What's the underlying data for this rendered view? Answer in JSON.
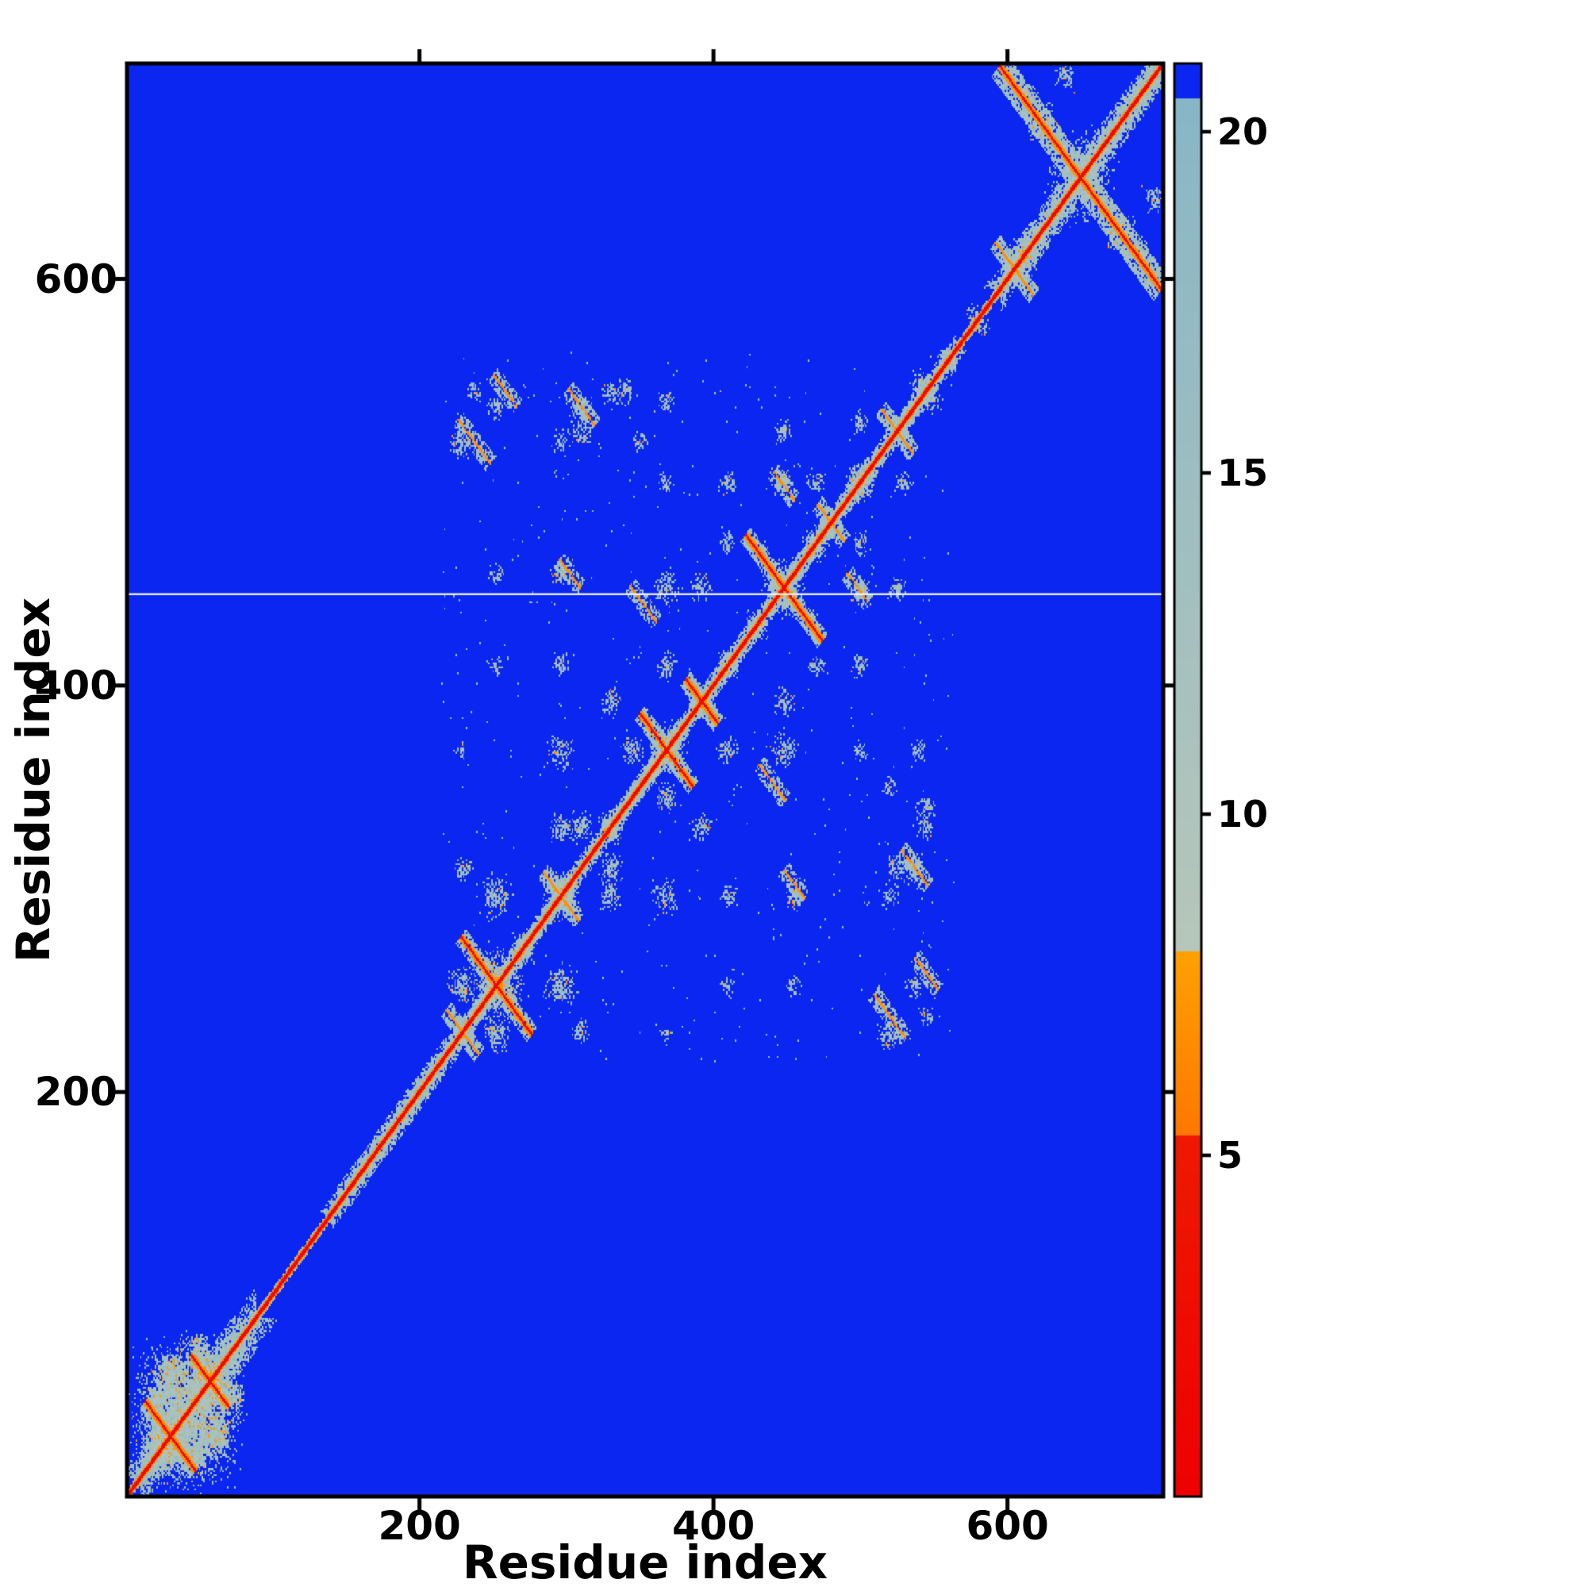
{
  "figure": {
    "description": "Protein residue-residue distance map (contact map) with colorbar",
    "background": "#ffffff"
  },
  "chart_data": {
    "type": "heatmap",
    "title": "",
    "xlabel": "Residue index",
    "ylabel": "Residue index",
    "x_ticks": [
      200,
      400,
      600
    ],
    "y_ticks": [
      200,
      400,
      600
    ],
    "xlim": [
      1,
      706
    ],
    "ylim": [
      1,
      706
    ],
    "grid": false,
    "legend": "none",
    "colorbar": {
      "orientation": "vertical",
      "position": "right",
      "ticks": [
        5,
        10,
        15,
        20
      ],
      "vmin": 0,
      "vmax": 21
    },
    "colormap": {
      "description": "distance colormap: red = closest contacts (<5.3), orange = 5.3-8, pale gray-cyan = 8-20.5, blue = far (>20.5)",
      "red": "#ee1902",
      "orange": "#ff8c00",
      "gray_low": "#b6c6ba",
      "gray_high": "#88b6c6",
      "blue": "#0a26f0",
      "thresholds": {
        "red_max": 5.3,
        "orange_max": 8.0,
        "gray_max": 20.5
      }
    },
    "background_value": 25,
    "white_line_y": 445,
    "diagonal": {
      "core_value": 2.2,
      "inner_value": 6.8,
      "base_halo": 3,
      "wide_segments": [
        {
          "start": 10,
          "end": 88,
          "extra": 13
        },
        {
          "start": 140,
          "end": 218,
          "extra": 6
        },
        {
          "start": 218,
          "end": 335,
          "extra": 4
        },
        {
          "start": 335,
          "end": 470,
          "extra": 4
        },
        {
          "start": 470,
          "end": 565,
          "extra": 4
        },
        {
          "start": 596,
          "end": 706,
          "extra": 9
        }
      ]
    },
    "antidiagonals": [
      [
        30,
        30,
        17,
        "red"
      ],
      [
        57,
        57,
        13,
        "red"
      ],
      [
        252,
        252,
        24,
        "red"
      ],
      [
        228,
        230,
        10,
        "orange"
      ],
      [
        296,
        296,
        12,
        "orange"
      ],
      [
        368,
        368,
        18,
        "red"
      ],
      [
        392,
        392,
        11,
        "red"
      ],
      [
        448,
        448,
        26,
        "red"
      ],
      [
        480,
        480,
        9,
        "orange"
      ],
      [
        525,
        525,
        11,
        "orange"
      ],
      [
        605,
        605,
        13,
        "orange"
      ],
      [
        650,
        650,
        55,
        "red"
      ],
      [
        237,
        520,
        11,
        "orange"
      ],
      [
        310,
        537,
        9,
        "orange"
      ],
      [
        352,
        440,
        9,
        "orange"
      ],
      [
        302,
        455,
        7,
        "orange"
      ],
      [
        448,
        498,
        7,
        "orange"
      ],
      [
        545,
        258,
        8,
        "orange"
      ]
    ],
    "blobs_xyrn": [
      [
        42,
        42,
        38,
        2200
      ],
      [
        26,
        26,
        13,
        450
      ],
      [
        58,
        58,
        13,
        450
      ],
      [
        30,
        62,
        11,
        330
      ],
      [
        22,
        48,
        7,
        140
      ],
      [
        50,
        74,
        7,
        140
      ],
      [
        252,
        252,
        20,
        420
      ],
      [
        228,
        252,
        10,
        140
      ],
      [
        252,
        296,
        12,
        170
      ],
      [
        230,
        310,
        7,
        70
      ],
      [
        296,
        296,
        13,
        220
      ],
      [
        270,
        270,
        9,
        120
      ],
      [
        310,
        330,
        9,
        120
      ],
      [
        330,
        330,
        9,
        110
      ],
      [
        296,
        330,
        9,
        100
      ],
      [
        368,
        368,
        14,
        240
      ],
      [
        345,
        368,
        8,
        90
      ],
      [
        392,
        392,
        10,
        150
      ],
      [
        368,
        410,
        8,
        90
      ],
      [
        410,
        410,
        8,
        110
      ],
      [
        430,
        430,
        8,
        100
      ],
      [
        448,
        448,
        15,
        260
      ],
      [
        470,
        470,
        9,
        110
      ],
      [
        500,
        500,
        11,
        150
      ],
      [
        525,
        525,
        10,
        130
      ],
      [
        545,
        545,
        11,
        150
      ],
      [
        560,
        560,
        8,
        90
      ],
      [
        296,
        368,
        10,
        110
      ],
      [
        296,
        410,
        7,
        60
      ],
      [
        330,
        392,
        8,
        80
      ],
      [
        368,
        448,
        10,
        110
      ],
      [
        392,
        448,
        8,
        80
      ],
      [
        410,
        470,
        7,
        60
      ],
      [
        448,
        500,
        9,
        90
      ],
      [
        448,
        525,
        7,
        55
      ],
      [
        410,
        500,
        7,
        55
      ],
      [
        470,
        500,
        7,
        60
      ],
      [
        500,
        530,
        7,
        60
      ],
      [
        296,
        455,
        8,
        70
      ],
      [
        310,
        537,
        9,
        90
      ],
      [
        330,
        545,
        7,
        55
      ],
      [
        252,
        537,
        7,
        55
      ],
      [
        228,
        520,
        10,
        100
      ],
      [
        237,
        545,
        6,
        40
      ],
      [
        296,
        520,
        7,
        50
      ],
      [
        350,
        520,
        6,
        40
      ],
      [
        368,
        500,
        6,
        40
      ],
      [
        525,
        310,
        8,
        70
      ],
      [
        545,
        340,
        8,
        70
      ],
      [
        540,
        368,
        7,
        50
      ],
      [
        252,
        455,
        6,
        40
      ],
      [
        252,
        410,
        6,
        35
      ],
      [
        228,
        368,
        5,
        25
      ],
      [
        650,
        650,
        26,
        330
      ],
      [
        622,
        678,
        12,
        140
      ],
      [
        612,
        612,
        12,
        150
      ],
      [
        690,
        612,
        9,
        90
      ],
      [
        700,
        640,
        8,
        70
      ],
      [
        580,
        580,
        8,
        80
      ]
    ],
    "speckles": {
      "xmin": 215,
      "xmax": 565,
      "ymin": 215,
      "ymax": 565,
      "n": 260
    }
  }
}
